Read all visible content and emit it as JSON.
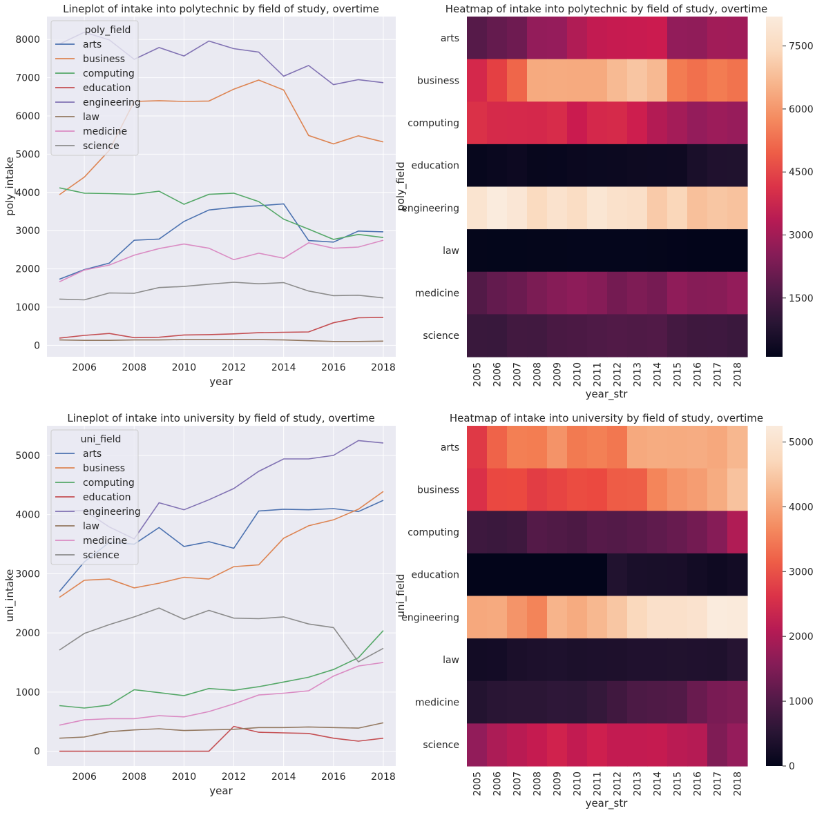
{
  "colors": {
    "arts": "#4c72b0",
    "business": "#dd8452",
    "computing": "#55a868",
    "education": "#c44e52",
    "engineering": "#8172b3",
    "law": "#937860",
    "medicine": "#da8bc3",
    "science": "#8c8c8c",
    "axes_background": "#eaeaf2",
    "grid": "#ffffff"
  },
  "chart_data": [
    {
      "type": "line",
      "title": "Lineplot of intake into polytechnic by field of study, overtime",
      "xlabel": "year",
      "ylabel": "poly_intake",
      "x": [
        2005,
        2006,
        2007,
        2008,
        2009,
        2010,
        2011,
        2012,
        2013,
        2014,
        2015,
        2016,
        2017,
        2018
      ],
      "xlim": [
        2004.5,
        2018.5
      ],
      "ylim": [
        -300,
        8600
      ],
      "xticks": [
        "2006",
        "2008",
        "2010",
        "2012",
        "2014",
        "2016",
        "2018"
      ],
      "yticks": [
        "0",
        "1000",
        "2000",
        "3000",
        "4000",
        "5000",
        "6000",
        "7000",
        "8000"
      ],
      "legend_title": "poly_field",
      "legend_position": "upper-left",
      "grid": true,
      "series": [
        {
          "name": "arts",
          "values": [
            1730,
            1980,
            2150,
            2750,
            2780,
            3240,
            3540,
            3610,
            3650,
            3700,
            2740,
            2700,
            2990,
            2970
          ]
        },
        {
          "name": "business",
          "values": [
            3940,
            4400,
            5100,
            6380,
            6400,
            6380,
            6390,
            6700,
            6940,
            6680,
            5490,
            5270,
            5480,
            5320
          ]
        },
        {
          "name": "computing",
          "values": [
            4120,
            3980,
            3970,
            3950,
            4030,
            3690,
            3950,
            3980,
            3760,
            3300,
            3040,
            2770,
            2900,
            2820
          ]
        },
        {
          "name": "education",
          "values": [
            190,
            260,
            310,
            200,
            210,
            270,
            280,
            300,
            330,
            340,
            350,
            590,
            720,
            730
          ]
        },
        {
          "name": "engineering",
          "values": [
            7880,
            8190,
            7990,
            7480,
            7790,
            7570,
            7960,
            7760,
            7670,
            7040,
            7320,
            6820,
            6950,
            6870
          ]
        },
        {
          "name": "law",
          "values": [
            140,
            130,
            130,
            140,
            140,
            150,
            150,
            150,
            150,
            140,
            120,
            100,
            100,
            110
          ]
        },
        {
          "name": "medicine",
          "values": [
            1660,
            1970,
            2100,
            2360,
            2530,
            2650,
            2540,
            2240,
            2410,
            2280,
            2680,
            2540,
            2570,
            2750
          ]
        },
        {
          "name": "science",
          "values": [
            1210,
            1190,
            1370,
            1360,
            1510,
            1540,
            1600,
            1650,
            1610,
            1640,
            1420,
            1300,
            1310,
            1240
          ]
        }
      ]
    },
    {
      "type": "heatmap",
      "title": "Heatmap of intake into polytechnic by field of study, overtime",
      "xlabel": "year_str",
      "ylabel": "poly_field",
      "columns": [
        "2005",
        "2006",
        "2007",
        "2008",
        "2009",
        "2010",
        "2011",
        "2012",
        "2013",
        "2014",
        "2015",
        "2016",
        "2017",
        "2018"
      ],
      "rows": [
        "arts",
        "business",
        "computing",
        "education",
        "engineering",
        "law",
        "medicine",
        "science"
      ],
      "colorbar_range": [
        100,
        8200
      ],
      "colorbar_ticks": [
        "1500",
        "3000",
        "4500",
        "6000",
        "7500"
      ],
      "colormap": "rocket",
      "values_from_chart": 0
    },
    {
      "type": "line",
      "title": "Lineplot of intake into university by field of study, overtime",
      "xlabel": "year",
      "ylabel": "uni_intake",
      "x": [
        2005,
        2006,
        2007,
        2008,
        2009,
        2010,
        2011,
        2012,
        2013,
        2014,
        2015,
        2016,
        2017,
        2018
      ],
      "xlim": [
        2004.5,
        2018.5
      ],
      "ylim": [
        -250,
        5500
      ],
      "xticks": [
        "2006",
        "2008",
        "2010",
        "2012",
        "2014",
        "2016",
        "2018"
      ],
      "yticks": [
        "0",
        "1000",
        "2000",
        "3000",
        "4000",
        "5000"
      ],
      "legend_title": "uni_field",
      "legend_position": "upper-left",
      "grid": true,
      "series": [
        {
          "name": "arts",
          "values": [
            2700,
            3200,
            3530,
            3500,
            3780,
            3460,
            3540,
            3430,
            4060,
            4090,
            4080,
            4100,
            4050,
            4240
          ]
        },
        {
          "name": "business",
          "values": [
            2600,
            2890,
            2910,
            2760,
            2840,
            2940,
            2910,
            3120,
            3150,
            3600,
            3810,
            3910,
            4090,
            4390
          ]
        },
        {
          "name": "computing",
          "values": [
            770,
            730,
            780,
            1040,
            990,
            940,
            1060,
            1030,
            1090,
            1170,
            1250,
            1380,
            1580,
            2040
          ]
        },
        {
          "name": "education",
          "values": [
            0,
            0,
            0,
            0,
            0,
            0,
            0,
            420,
            320,
            310,
            300,
            220,
            170,
            220
          ]
        },
        {
          "name": "engineering",
          "values": [
            4050,
            4070,
            3790,
            3590,
            4200,
            4080,
            4250,
            4440,
            4730,
            4940,
            4940,
            5000,
            5250,
            5210
          ]
        },
        {
          "name": "law",
          "values": [
            220,
            240,
            330,
            360,
            380,
            350,
            360,
            370,
            400,
            400,
            410,
            400,
            390,
            480
          ]
        },
        {
          "name": "medicine",
          "values": [
            440,
            530,
            550,
            550,
            600,
            580,
            670,
            800,
            950,
            980,
            1020,
            1270,
            1440,
            1500
          ]
        },
        {
          "name": "science",
          "values": [
            1710,
            1990,
            2140,
            2270,
            2420,
            2230,
            2380,
            2250,
            2240,
            2270,
            2150,
            2090,
            1510,
            1740
          ]
        }
      ]
    },
    {
      "type": "heatmap",
      "title": "Heatmap of intake into university by field of study, overtime",
      "xlabel": "year_str",
      "ylabel": "uni_field",
      "columns": [
        "2005",
        "2006",
        "2007",
        "2008",
        "2009",
        "2010",
        "2011",
        "2012",
        "2013",
        "2014",
        "2015",
        "2016",
        "2017",
        "2018"
      ],
      "rows": [
        "arts",
        "business",
        "computing",
        "education",
        "engineering",
        "law",
        "medicine",
        "science"
      ],
      "colorbar_range": [
        0,
        5250
      ],
      "colorbar_ticks": [
        "0",
        "1000",
        "2000",
        "3000",
        "4000",
        "5000"
      ],
      "colormap": "rocket",
      "values_from_chart": 2
    }
  ]
}
